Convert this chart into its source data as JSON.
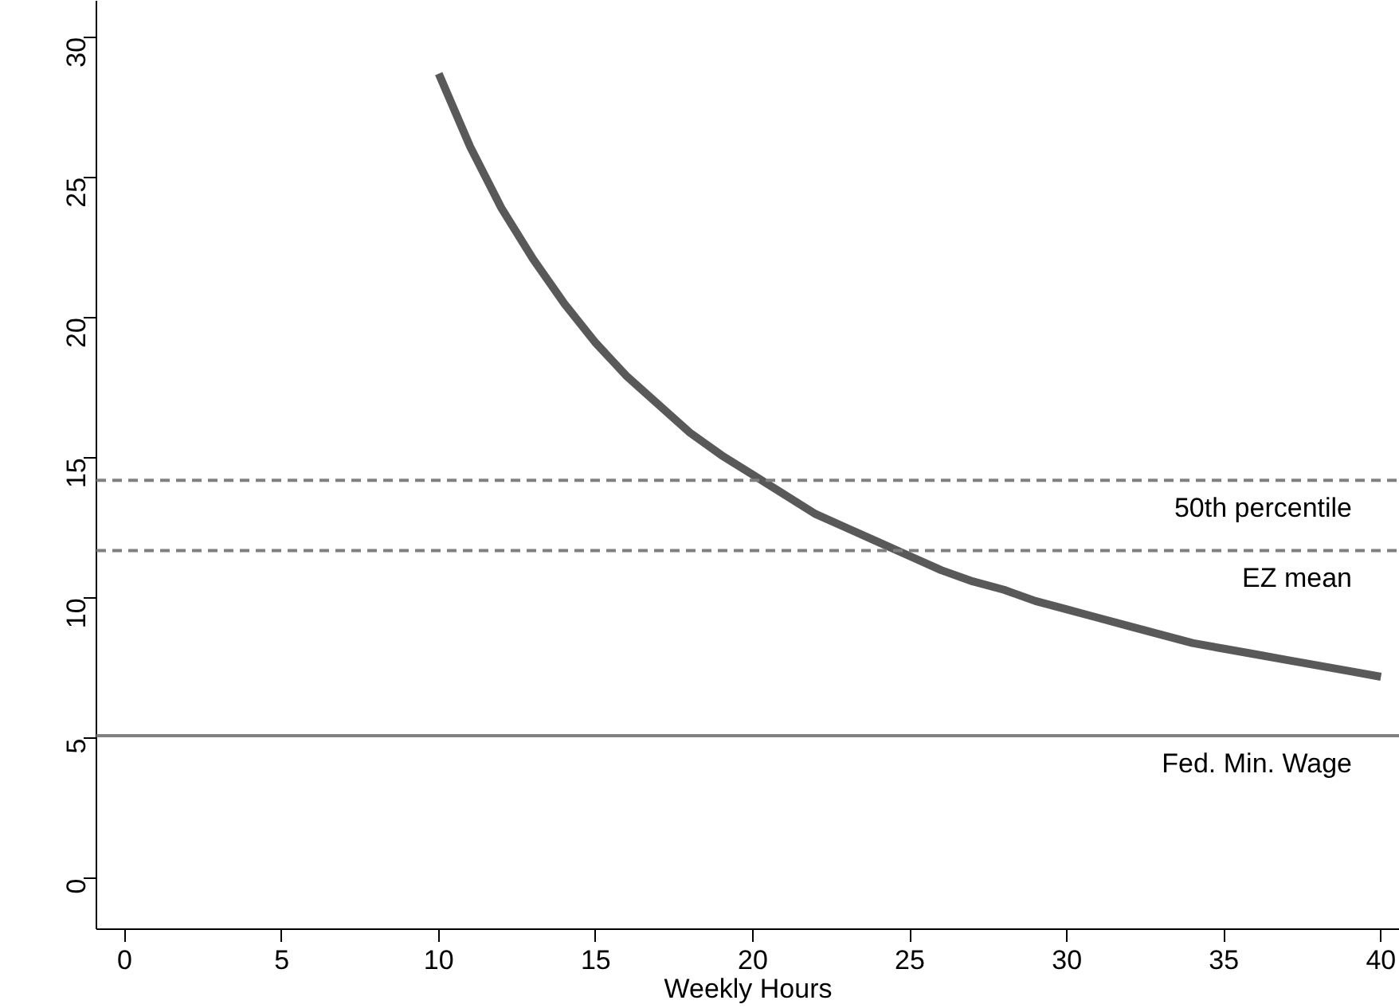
{
  "chart_data": {
    "type": "line",
    "xlabel": "Weekly Hours",
    "x": [
      10,
      11,
      12,
      13,
      14,
      15,
      16,
      17,
      18,
      19,
      20,
      21,
      22,
      23,
      24,
      25,
      26,
      27,
      28,
      29,
      30,
      31,
      32,
      33,
      34,
      35,
      36,
      37,
      38,
      39,
      40
    ],
    "series": [
      {
        "color": "#595959",
        "values": [
          28.7,
          26.1,
          23.9,
          22.1,
          20.5,
          19.1,
          17.9,
          16.9,
          15.9,
          15.1,
          14.4,
          13.7,
          13.0,
          12.5,
          12.0,
          11.5,
          11.0,
          10.6,
          10.3,
          9.9,
          9.6,
          9.3,
          9.0,
          8.7,
          8.4,
          8.2,
          8.0,
          7.8,
          7.6,
          7.4,
          7.2
        ]
      }
    ],
    "xlim": [
      -0.9,
      40.6
    ],
    "ylim": [
      -1.8,
      31.3
    ],
    "xticks": [
      0,
      5,
      10,
      15,
      20,
      25,
      30,
      35,
      40
    ],
    "yticks": [
      0,
      5,
      10,
      15,
      20,
      25,
      30
    ],
    "grid": false,
    "marker": "none",
    "line_style": "solid",
    "ref_lines": [
      {
        "axis": "y",
        "value": 14.2,
        "label": "50th percentile",
        "color": "#808080",
        "line_style": "dashed"
      },
      {
        "axis": "y",
        "value": 11.7,
        "label": "EZ mean",
        "color": "#808080",
        "line_style": "dashed"
      },
      {
        "axis": "y",
        "value": 5.1,
        "label": "Fed. Min. Wage",
        "color": "#808080",
        "line_style": "solid"
      }
    ]
  }
}
